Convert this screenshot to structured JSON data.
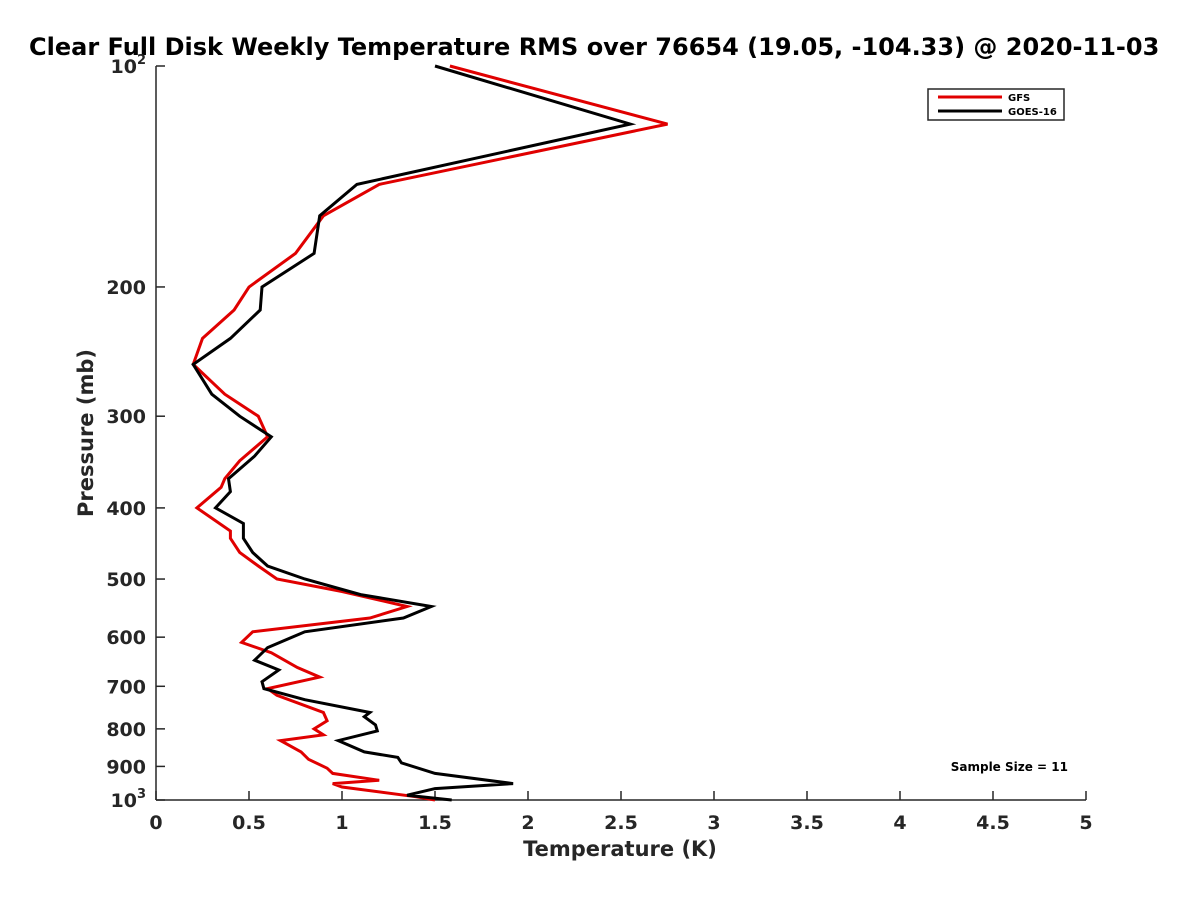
{
  "chart_data": {
    "type": "line",
    "title": "Clear Full Disk Weekly Temperature RMS over 76654 (19.05, -104.33) @ 2020-11-03",
    "xlabel": "Temperature (K)",
    "ylabel": "Pressure (mb)",
    "xlim": [
      0,
      5
    ],
    "ylim": [
      100,
      1000
    ],
    "y_scale": "log",
    "y_reversed": true,
    "grid": false,
    "x_ticks": [
      "0",
      "0.5",
      "1",
      "1.5",
      "2",
      "2.5",
      "3",
      "3.5",
      "4",
      "4.5",
      "5"
    ],
    "y_ticks": [
      {
        "value": 100,
        "base": "10",
        "exp": "2"
      },
      {
        "value": 200,
        "label": "200"
      },
      {
        "value": 300,
        "label": "300"
      },
      {
        "value": 400,
        "label": "400"
      },
      {
        "value": 500,
        "label": "500"
      },
      {
        "value": 600,
        "label": "600"
      },
      {
        "value": 700,
        "label": "700"
      },
      {
        "value": 800,
        "label": "800"
      },
      {
        "value": 900,
        "label": "900"
      },
      {
        "value": 1000,
        "base": "10",
        "exp": "3"
      }
    ],
    "legend_position": "top-right",
    "annotation": "Sample Size = 11",
    "series": [
      {
        "name": "GFS",
        "color": "#e00000",
        "points": [
          [
            1.58,
            100
          ],
          [
            2.75,
            120
          ],
          [
            1.2,
            145
          ],
          [
            0.9,
            160
          ],
          [
            0.75,
            180
          ],
          [
            0.5,
            200
          ],
          [
            0.42,
            215
          ],
          [
            0.25,
            235
          ],
          [
            0.2,
            255
          ],
          [
            0.37,
            280
          ],
          [
            0.55,
            300
          ],
          [
            0.6,
            320
          ],
          [
            0.45,
            345
          ],
          [
            0.37,
            365
          ],
          [
            0.35,
            375
          ],
          [
            0.22,
            400
          ],
          [
            0.4,
            430
          ],
          [
            0.4,
            440
          ],
          [
            0.45,
            460
          ],
          [
            0.55,
            480
          ],
          [
            0.65,
            500
          ],
          [
            1.0,
            520
          ],
          [
            1.35,
            545
          ],
          [
            1.15,
            565
          ],
          [
            0.52,
            590
          ],
          [
            0.46,
            610
          ],
          [
            0.62,
            630
          ],
          [
            0.76,
            660
          ],
          [
            0.88,
            680
          ],
          [
            0.6,
            705
          ],
          [
            0.65,
            720
          ],
          [
            0.9,
            760
          ],
          [
            0.92,
            780
          ],
          [
            0.85,
            800
          ],
          [
            0.9,
            815
          ],
          [
            0.67,
            830
          ],
          [
            0.78,
            860
          ],
          [
            0.82,
            880
          ],
          [
            0.92,
            905
          ],
          [
            0.95,
            920
          ],
          [
            1.2,
            940
          ],
          [
            0.95,
            950
          ],
          [
            1.0,
            960
          ],
          [
            1.4,
            990
          ],
          [
            1.5,
            1000
          ]
        ]
      },
      {
        "name": "GOES-16",
        "color": "#000000",
        "points": [
          [
            1.5,
            100
          ],
          [
            2.55,
            120
          ],
          [
            1.08,
            145
          ],
          [
            0.88,
            160
          ],
          [
            0.85,
            180
          ],
          [
            0.57,
            200
          ],
          [
            0.56,
            215
          ],
          [
            0.4,
            235
          ],
          [
            0.2,
            255
          ],
          [
            0.3,
            280
          ],
          [
            0.45,
            300
          ],
          [
            0.62,
            320
          ],
          [
            0.53,
            340
          ],
          [
            0.39,
            365
          ],
          [
            0.4,
            380
          ],
          [
            0.32,
            400
          ],
          [
            0.47,
            420
          ],
          [
            0.47,
            440
          ],
          [
            0.52,
            460
          ],
          [
            0.6,
            480
          ],
          [
            0.8,
            500
          ],
          [
            1.1,
            525
          ],
          [
            1.48,
            545
          ],
          [
            1.33,
            565
          ],
          [
            0.8,
            590
          ],
          [
            0.6,
            620
          ],
          [
            0.53,
            645
          ],
          [
            0.66,
            665
          ],
          [
            0.57,
            690
          ],
          [
            0.58,
            705
          ],
          [
            0.8,
            730
          ],
          [
            1.15,
            760
          ],
          [
            1.12,
            770
          ],
          [
            1.18,
            790
          ],
          [
            1.19,
            805
          ],
          [
            0.98,
            830
          ],
          [
            1.12,
            860
          ],
          [
            1.3,
            875
          ],
          [
            1.32,
            890
          ],
          [
            1.5,
            920
          ],
          [
            1.92,
            950
          ],
          [
            1.5,
            965
          ],
          [
            1.35,
            985
          ],
          [
            1.59,
            1000
          ]
        ]
      }
    ]
  }
}
